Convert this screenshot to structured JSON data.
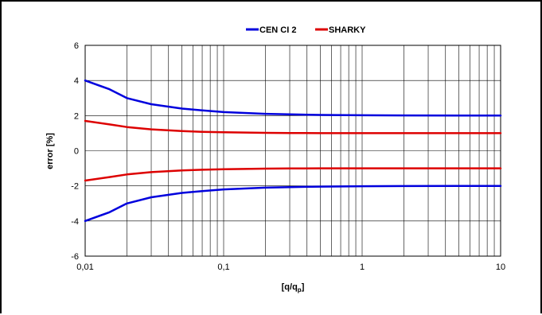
{
  "chart_data": {
    "type": "line",
    "title": "",
    "xlabel": "[q/q",
    "xlabel_sub": "p",
    "xlabel_end": "]",
    "ylabel": "error [%]",
    "x_scale": "log",
    "xlim": [
      0.01,
      10
    ],
    "ylim": [
      -6,
      6
    ],
    "x_ticks": [
      0.01,
      0.1,
      1,
      10
    ],
    "x_tick_labels": [
      "0,01",
      "0,1",
      "1",
      "10"
    ],
    "y_ticks": [
      -6,
      -4,
      -2,
      0,
      2,
      4,
      6
    ],
    "y_tick_labels": [
      "-6",
      "-4",
      "-2",
      "0",
      "2",
      "4",
      "6"
    ],
    "grid": true,
    "legend_position": "top-center",
    "series": [
      {
        "name": "CEN CI 2",
        "color": "#0000dd",
        "x": [
          0.01,
          0.015,
          0.02,
          0.03,
          0.05,
          0.07,
          0.1,
          0.2,
          0.3,
          0.5,
          1,
          2,
          5,
          10
        ],
        "y": [
          4.0,
          3.5,
          3.0,
          2.65,
          2.4,
          2.3,
          2.2,
          2.1,
          2.07,
          2.04,
          2.02,
          2.01,
          2.0,
          2.0
        ]
      },
      {
        "name": "",
        "color": "#0000dd",
        "legend_series": "CEN CI 2",
        "x": [
          0.01,
          0.015,
          0.02,
          0.03,
          0.05,
          0.07,
          0.1,
          0.2,
          0.3,
          0.5,
          1,
          2,
          5,
          10
        ],
        "y": [
          -4.0,
          -3.5,
          -3.0,
          -2.65,
          -2.4,
          -2.3,
          -2.2,
          -2.1,
          -2.07,
          -2.04,
          -2.02,
          -2.01,
          -2.0,
          -2.0
        ]
      },
      {
        "name": "SHARKY",
        "color": "#dd0000",
        "x": [
          0.01,
          0.015,
          0.02,
          0.03,
          0.05,
          0.07,
          0.1,
          0.2,
          0.3,
          0.5,
          1,
          2,
          5,
          10
        ],
        "y": [
          1.7,
          1.5,
          1.35,
          1.22,
          1.12,
          1.08,
          1.05,
          1.02,
          1.01,
          1.0,
          1.0,
          1.0,
          1.0,
          1.0
        ]
      },
      {
        "name": "",
        "color": "#dd0000",
        "legend_series": "SHARKY",
        "x": [
          0.01,
          0.015,
          0.02,
          0.03,
          0.05,
          0.07,
          0.1,
          0.2,
          0.3,
          0.5,
          1,
          2,
          5,
          10
        ],
        "y": [
          -1.7,
          -1.5,
          -1.35,
          -1.22,
          -1.12,
          -1.08,
          -1.05,
          -1.02,
          -1.01,
          -1.0,
          -1.0,
          -1.0,
          -1.0,
          -1.0
        ]
      }
    ],
    "legend": [
      {
        "label": "CEN CI 2",
        "color": "#0000dd"
      },
      {
        "label": "SHARKY",
        "color": "#dd0000"
      }
    ]
  }
}
